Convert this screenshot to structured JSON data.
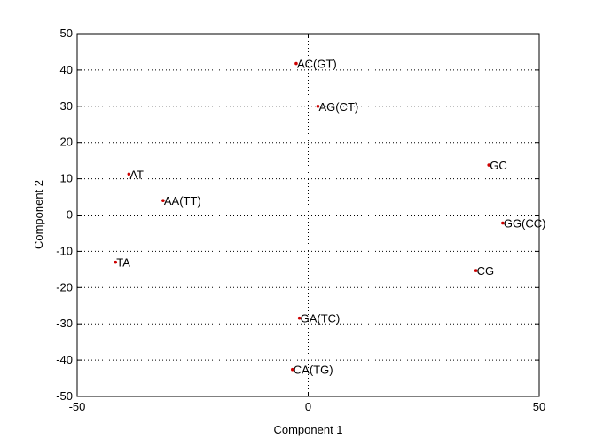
{
  "chart_data": {
    "type": "scatter",
    "title": "",
    "xlabel": "Component 1",
    "ylabel": "Component 2",
    "xlim": [
      -50,
      50
    ],
    "ylim": [
      -50,
      50
    ],
    "xticks": [
      -50,
      0,
      50
    ],
    "yticks": [
      -50,
      -40,
      -30,
      -20,
      -10,
      0,
      10,
      20,
      30,
      40,
      50
    ],
    "grid": true,
    "marker_color": "#cc0000",
    "points": [
      {
        "label": "AC(GT)",
        "x": -2.6,
        "y": 41.8
      },
      {
        "label": "AG(CT)",
        "x": 2.1,
        "y": 30.0
      },
      {
        "label": "GC",
        "x": 39.1,
        "y": 13.8
      },
      {
        "label": "AT",
        "x": -38.8,
        "y": 11.3
      },
      {
        "label": "AA(TT)",
        "x": -31.4,
        "y": 4.0
      },
      {
        "label": "GG(CC)",
        "x": 42.1,
        "y": -2.2
      },
      {
        "label": "TA",
        "x": -41.7,
        "y": -13.0
      },
      {
        "label": "CG",
        "x": 36.3,
        "y": -15.3
      },
      {
        "label": "GA(TC)",
        "x": -1.9,
        "y": -28.4
      },
      {
        "label": "CA(TG)",
        "x": -3.4,
        "y": -42.6
      }
    ]
  }
}
